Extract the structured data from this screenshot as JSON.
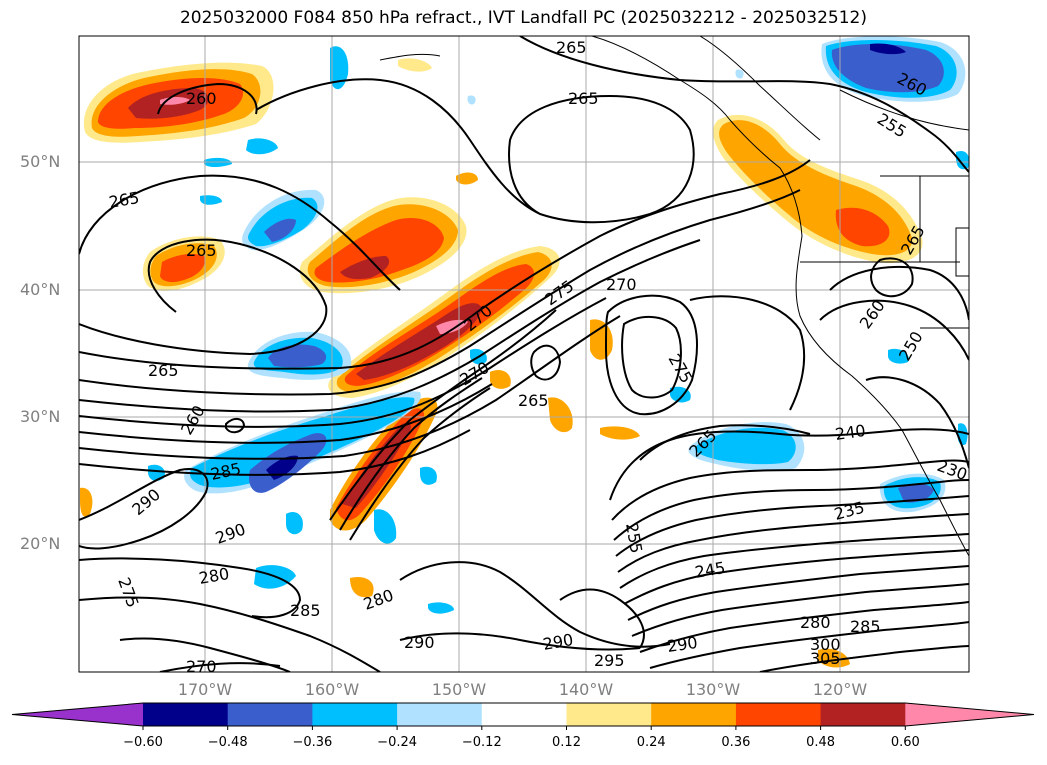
{
  "title": "2025032000 F084 850 hPa refract., IVT Landfall PC (2025032212 - 2025032512)",
  "lat_labels": [
    "50°N",
    "40°N",
    "30°N",
    "20°N"
  ],
  "lon_labels": [
    "170°W",
    "160°W",
    "150°W",
    "140°W",
    "130°W",
    "120°W"
  ],
  "colorbar": {
    "levels": [
      "−0.60",
      "−0.48",
      "−0.36",
      "−0.24",
      "−0.12",
      "0.12",
      "0.24",
      "0.36",
      "0.48",
      "0.60"
    ],
    "colors": [
      "#9932cc",
      "#00008b",
      "#3a5fcd",
      "#00bfff",
      "#b0e2ff",
      "#ffffff",
      "#ffe98a",
      "#ffa500",
      "#ff4500",
      "#b22222",
      "#ff88aa"
    ]
  },
  "contour_labels": [
    "265",
    "260",
    "265",
    "260",
    "255",
    "265",
    "265",
    "275",
    "270",
    "270",
    "275",
    "270",
    "265",
    "265",
    "265",
    "260",
    "285",
    "290",
    "290",
    "280",
    "285",
    "280",
    "275",
    "290",
    "290",
    "270",
    "295",
    "290",
    "280",
    "285",
    "300",
    "305",
    "245",
    "235",
    "240",
    "230",
    "265",
    "255",
    "260",
    "250"
  ],
  "chart_data": {
    "type": "map",
    "title": "2025032000 F084 850 hPa refract., IVT Landfall PC (2025032212 - 2025032512)",
    "lat_ticks": [
      "50°N",
      "40°N",
      "30°N",
      "20°N"
    ],
    "lon_ticks": [
      "170°W",
      "160°W",
      "150°W",
      "140°W",
      "130°W",
      "120°W"
    ],
    "contour_variable_labels": [
      230,
      235,
      240,
      245,
      250,
      255,
      260,
      265,
      270,
      275,
      280,
      285,
      290,
      295,
      300,
      305
    ],
    "shading_levels": [
      -0.6,
      -0.48,
      -0.36,
      -0.24,
      -0.12,
      0.12,
      0.24,
      0.36,
      0.48,
      0.6
    ],
    "colorbar_extend": "both",
    "grid": true
  }
}
